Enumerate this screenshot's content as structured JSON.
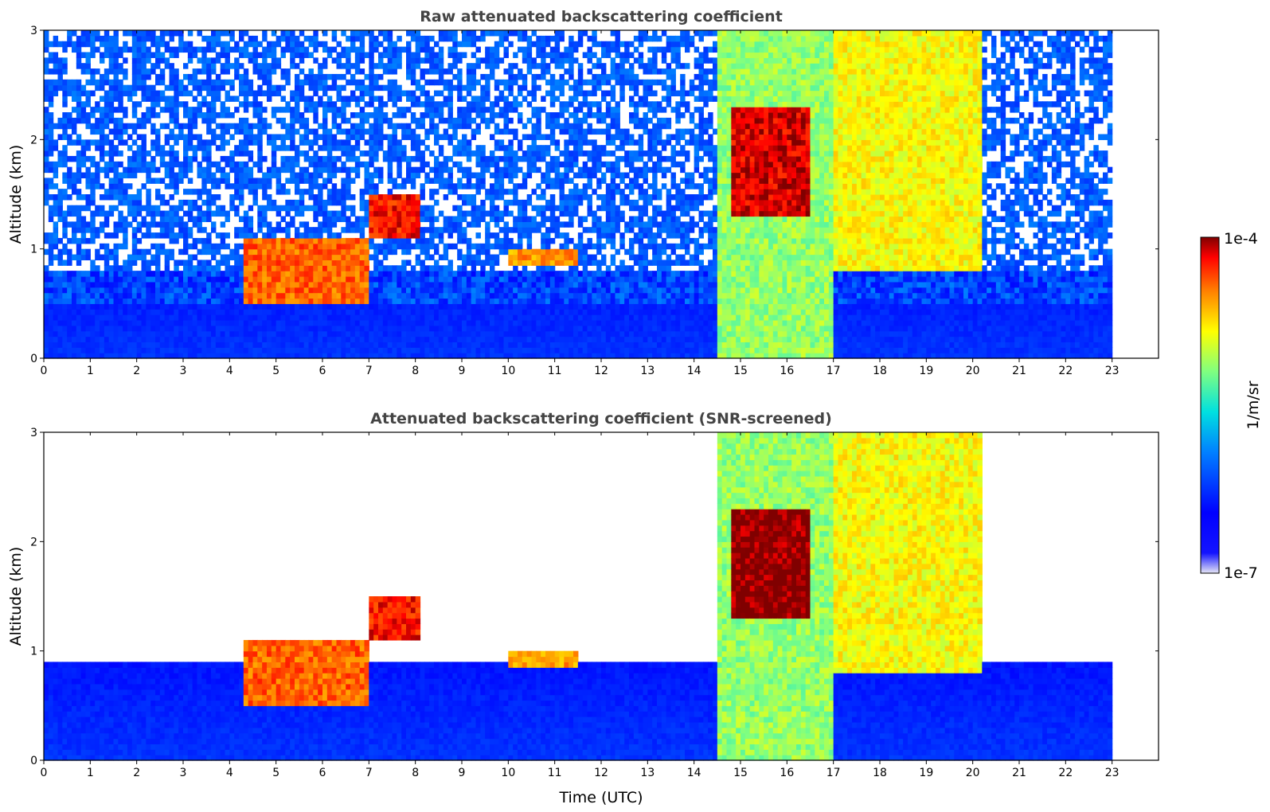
{
  "chart_data": [
    {
      "type": "heatmap",
      "title": "Raw attenuated backscattering coefficient",
      "xlabel": "",
      "ylabel": "Altitude (km)",
      "xlim": [
        0,
        24
      ],
      "ylim": [
        0,
        3
      ],
      "data_end_time": 23,
      "xticks": [
        0,
        1,
        2,
        3,
        4,
        5,
        6,
        7,
        8,
        9,
        10,
        11,
        12,
        13,
        14,
        15,
        16,
        17,
        18,
        19,
        20,
        21,
        22,
        23
      ],
      "yticks": [
        0,
        1,
        2,
        3
      ],
      "features": [
        {
          "kind": "boundary_layer",
          "t": [
            0,
            23
          ],
          "z": [
            0,
            0.8
          ],
          "level": 0.2
        },
        {
          "kind": "noise",
          "t": [
            0,
            23
          ],
          "z": [
            0.5,
            3.0
          ],
          "level": 0.26
        },
        {
          "kind": "aerosol_layer",
          "t": [
            4.3,
            7.0
          ],
          "z": [
            0.5,
            1.1
          ],
          "level": 0.85
        },
        {
          "kind": "cloud",
          "t": [
            7.0,
            8.1
          ],
          "z": [
            1.1,
            1.5
          ],
          "level": 0.92
        },
        {
          "kind": "aerosol_layer",
          "t": [
            10.0,
            11.5
          ],
          "z": [
            0.85,
            1.0
          ],
          "level": 0.8
        },
        {
          "kind": "plume",
          "t": [
            14.5,
            17.0
          ],
          "z": [
            0,
            3.0
          ],
          "level": 0.6
        },
        {
          "kind": "cloud",
          "t": [
            14.8,
            16.5
          ],
          "z": [
            1.3,
            2.3
          ],
          "level": 0.95
        },
        {
          "kind": "plume",
          "t": [
            17.0,
            20.2
          ],
          "z": [
            0.8,
            3.0
          ],
          "level": 0.7
        }
      ],
      "colorscale": "jet"
    },
    {
      "type": "heatmap",
      "title": "Attenuated backscattering coefficient (SNR-screened)",
      "xlabel": "Time (UTC)",
      "ylabel": "Altitude (km)",
      "xlim": [
        0,
        24
      ],
      "ylim": [
        0,
        3
      ],
      "data_end_time": 23,
      "xticks": [
        0,
        1,
        2,
        3,
        4,
        5,
        6,
        7,
        8,
        9,
        10,
        11,
        12,
        13,
        14,
        15,
        16,
        17,
        18,
        19,
        20,
        21,
        22,
        23
      ],
      "yticks": [
        0,
        1,
        2,
        3
      ],
      "features": [
        {
          "kind": "boundary_layer",
          "t": [
            0,
            23
          ],
          "z": [
            0,
            0.9
          ],
          "level": 0.2
        },
        {
          "kind": "aerosol_layer",
          "t": [
            4.3,
            7.0
          ],
          "z": [
            0.5,
            1.1
          ],
          "level": 0.85
        },
        {
          "kind": "cloud",
          "t": [
            7.0,
            8.1
          ],
          "z": [
            1.1,
            1.5
          ],
          "level": 0.92
        },
        {
          "kind": "aerosol_layer",
          "t": [
            10.0,
            11.5
          ],
          "z": [
            0.85,
            1.0
          ],
          "level": 0.8
        },
        {
          "kind": "plume",
          "t": [
            14.5,
            17.0
          ],
          "z": [
            0,
            3.0
          ],
          "level": 0.6
        },
        {
          "kind": "cloud",
          "t": [
            14.8,
            16.5
          ],
          "z": [
            1.3,
            2.3
          ],
          "level": 1.0
        },
        {
          "kind": "plume",
          "t": [
            17.0,
            20.2
          ],
          "z": [
            0.8,
            3.0
          ],
          "level": 0.7
        }
      ],
      "colorscale": "jet"
    }
  ],
  "colorbar": {
    "label": "1/m/sr",
    "min_label": "1e-7",
    "max_label": "1e-4",
    "scale": "log",
    "colorscale": "jet"
  }
}
